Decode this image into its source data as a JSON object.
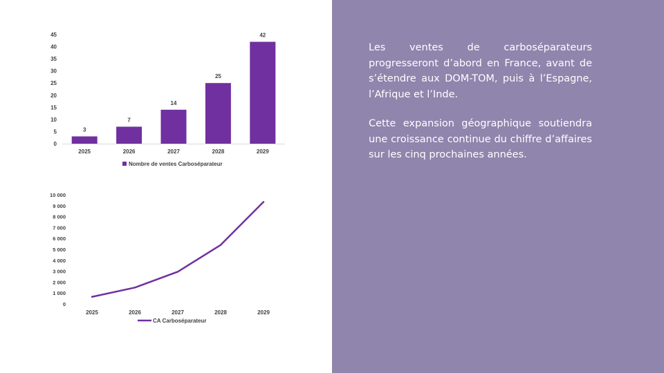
{
  "chart_data": [
    {
      "type": "bar",
      "categories": [
        "2025",
        "2026",
        "2027",
        "2028",
        "2029"
      ],
      "series": [
        {
          "name": "Nombre de ventes Carboséparateur",
          "values": [
            3,
            7,
            14,
            25,
            42
          ]
        }
      ],
      "data_labels": [
        "3",
        "7",
        "14",
        "25",
        "42"
      ],
      "yticks": [
        0,
        5,
        10,
        15,
        20,
        25,
        30,
        35,
        40,
        45
      ],
      "ytick_labels": [
        "0",
        "5",
        "10",
        "15",
        "20",
        "25",
        "30",
        "35",
        "40",
        "45"
      ],
      "ylim": [
        0,
        45
      ],
      "legend_position": "bottom",
      "grid": false,
      "color": "#7030a0"
    },
    {
      "type": "line",
      "categories": [
        "2025",
        "2026",
        "2027",
        "2028",
        "2029"
      ],
      "series": [
        {
          "name": "CA Carboséparateur",
          "values": [
            650,
            1500,
            2950,
            5400,
            9350
          ]
        }
      ],
      "yticks": [
        0,
        1000,
        2000,
        3000,
        4000,
        5000,
        6000,
        7000,
        8000,
        9000,
        10000
      ],
      "ytick_labels": [
        "0",
        "1 000",
        "2 000",
        "3 000",
        "4 000",
        "5 000",
        "6 000",
        "7 000",
        "8 000",
        "9 000",
        "10 000"
      ],
      "ylim": [
        0,
        10000
      ],
      "legend_position": "bottom",
      "grid": false,
      "color": "#7030a0"
    }
  ],
  "text": {
    "paragraph_1": "Les ventes de carboséparateurs progresseront d’abord en France, avant de s’étendre aux DOM-TOM, puis à l’Espagne, l’Afrique et l’Inde.",
    "paragraph_2": "Cette expansion géographique soutiendra une croissance continue du chiffre d’affaires sur les cinq prochaines années."
  },
  "colors": {
    "panel_background": "#8f85ad",
    "series_color": "#7030a0",
    "axis_text": "#404040"
  }
}
